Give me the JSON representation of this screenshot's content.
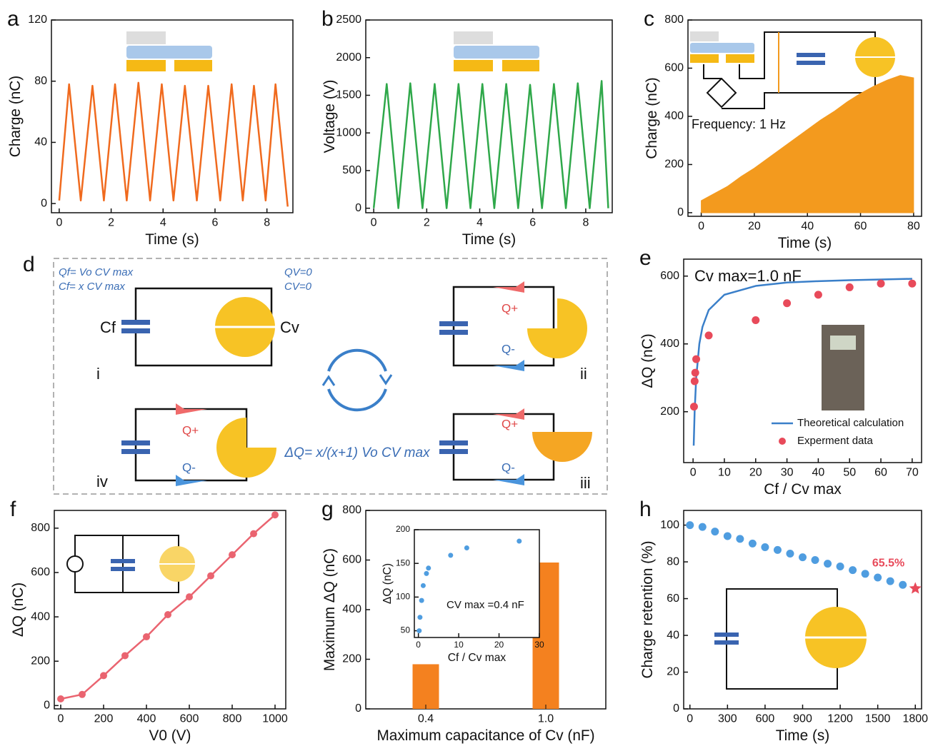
{
  "chart_data": [
    {
      "panel": "a",
      "type": "line",
      "xlabel": "Time (s)",
      "ylabel": "Charge (nC)",
      "x": [
        0,
        0.38,
        0.83,
        1.28,
        1.72,
        2.15,
        2.6,
        3.05,
        3.5,
        3.95,
        4.4,
        4.84,
        5.3,
        5.74,
        6.2,
        6.64,
        7.07,
        7.5,
        7.95,
        8.33,
        8.8
      ],
      "series": [
        {
          "color": "#f06a1e",
          "values": [
            2,
            78,
            2,
            77,
            2,
            78,
            2,
            79,
            2,
            78,
            2,
            77,
            2,
            77,
            2,
            78,
            2,
            77,
            2,
            78,
            -2
          ]
        }
      ],
      "xlim": [
        -0.3,
        9
      ],
      "xticks": [
        0,
        2,
        4,
        6,
        8
      ],
      "ylim": [
        -6,
        120
      ],
      "yticks": [
        0,
        40,
        80,
        120
      ]
    },
    {
      "panel": "b",
      "type": "line",
      "xlabel": "Time (s)",
      "ylabel": "Voltage (V)",
      "x": [
        0,
        0.49,
        0.93,
        1.38,
        1.84,
        2.3,
        2.75,
        3.2,
        3.65,
        4.1,
        4.55,
        5.0,
        5.45,
        5.9,
        6.35,
        6.8,
        7.25,
        7.7,
        8.15,
        8.6,
        8.85
      ],
      "series": [
        {
          "color": "#2fa84a",
          "values": [
            0,
            1650,
            0,
            1660,
            0,
            1650,
            0,
            1650,
            0,
            1650,
            0,
            1650,
            0,
            1640,
            0,
            1650,
            0,
            1660,
            0,
            1690,
            0
          ]
        }
      ],
      "xlim": [
        -0.3,
        9
      ],
      "xticks": [
        0,
        2,
        4,
        6,
        8
      ],
      "ylim": [
        -60,
        2500
      ],
      "yticks": [
        0,
        500,
        1000,
        1500,
        2000,
        2500
      ]
    },
    {
      "panel": "c",
      "type": "area",
      "xlabel": "Time (s)",
      "ylabel": "Charge (nC)",
      "annotation": "Frequency: 1 Hz",
      "x": [
        0,
        5,
        10,
        15,
        20,
        25,
        30,
        35,
        40,
        45,
        50,
        55,
        60,
        65,
        70,
        75,
        80
      ],
      "series": [
        {
          "color": "#f39a1e",
          "values": [
            50,
            80,
            110,
            150,
            185,
            225,
            265,
            305,
            345,
            385,
            420,
            460,
            495,
            525,
            550,
            570,
            560
          ]
        }
      ],
      "xlim": [
        -5,
        83
      ],
      "xticks": [
        0,
        20,
        40,
        60,
        80
      ],
      "ylim": [
        -15,
        800
      ],
      "yticks": [
        0,
        200,
        400,
        600,
        800
      ]
    },
    {
      "panel": "e",
      "type": "scatter",
      "xlabel": "Cf / Cv max",
      "ylabel": "ΔQ (nC)",
      "annotation": "Cv max=1.0 nF",
      "series": [
        {
          "name": "Theoretical calculation",
          "type": "line",
          "color": "#3a7fc9",
          "x": [
            0.2,
            0.5,
            1,
            2,
            3,
            5,
            10,
            20,
            30,
            40,
            50,
            60,
            70
          ],
          "values": [
            100,
            200,
            300,
            400,
            450,
            500,
            545,
            571,
            581,
            585,
            588,
            590,
            592
          ]
        },
        {
          "name": "Experment data",
          "type": "scatter",
          "color": "#e84a5a",
          "x": [
            0.3,
            0.5,
            0.7,
            1,
            5,
            20,
            30,
            40,
            50,
            60,
            70
          ],
          "values": [
            215,
            290,
            315,
            355,
            425,
            470,
            520,
            545,
            567,
            578,
            578
          ]
        }
      ],
      "xlim": [
        -3,
        73
      ],
      "xticks": [
        0,
        10,
        20,
        30,
        40,
        50,
        60,
        70
      ],
      "ylim": [
        50,
        650
      ],
      "yticks": [
        200,
        400,
        600
      ]
    },
    {
      "panel": "f",
      "type": "line",
      "xlabel": "V0 (V)",
      "ylabel": "ΔQ (nC)",
      "x": [
        0,
        100,
        200,
        300,
        400,
        500,
        600,
        700,
        800,
        900,
        1000
      ],
      "series": [
        {
          "color": "#ea6470",
          "marker": true,
          "values": [
            30,
            50,
            135,
            225,
            310,
            410,
            490,
            585,
            680,
            775,
            860
          ]
        }
      ],
      "xlim": [
        -30,
        1050
      ],
      "xticks": [
        0,
        200,
        400,
        600,
        800,
        1000
      ],
      "ylim": [
        -15,
        880
      ],
      "yticks": [
        0,
        200,
        400,
        600,
        800
      ]
    },
    {
      "panel": "g",
      "type": "bar",
      "xlabel": "Maximum capacitance of Cv (nF)",
      "ylabel": "Maximum ΔQ (nC)",
      "categories": [
        "0.4",
        "1.0"
      ],
      "values": [
        180,
        590
      ],
      "color": "#f4811f",
      "ylim": [
        0,
        800
      ],
      "yticks": [
        0,
        200,
        400,
        600,
        800
      ],
      "inset": {
        "type": "scatter",
        "xlabel": "Cf / Cv max",
        "ylabel": "ΔQ (nC)",
        "annotation": "CV max =0.4 nF",
        "series": [
          {
            "color": "#4f9de0",
            "x": [
              0.2,
              0.4,
              0.8,
              1.2,
              2,
              2.5,
              8,
              12,
              25
            ],
            "values": [
              50,
              70,
              95,
              117,
              135,
              143,
              162,
              173,
              183
            ]
          }
        ],
        "xlim": [
          -1,
          30
        ],
        "xticks": [
          0,
          10,
          20,
          30
        ],
        "ylim": [
          40,
          200
        ],
        "yticks": [
          50,
          100,
          150,
          200
        ]
      }
    },
    {
      "panel": "h",
      "type": "scatter",
      "xlabel": "Time (s)",
      "ylabel": "Charge retention (%)",
      "series": [
        {
          "color": "#4f9de0",
          "x": [
            0,
            100,
            200,
            300,
            400,
            500,
            600,
            700,
            800,
            900,
            1000,
            1100,
            1200,
            1300,
            1400,
            1500,
            1600,
            1700
          ],
          "values": [
            100,
            99,
            96.5,
            94,
            92.5,
            90,
            88,
            86.5,
            84.5,
            82.5,
            81,
            79,
            77.5,
            75.5,
            73.5,
            71.5,
            69.5,
            67.5
          ]
        }
      ],
      "end_point": {
        "x": 1800,
        "value": 65.5,
        "label": "65.5%",
        "color": "#e84a5a"
      },
      "xlim": [
        -50,
        1850
      ],
      "xticks": [
        0,
        300,
        600,
        900,
        1200,
        1500,
        1800
      ],
      "ylim": [
        0,
        108
      ],
      "yticks": [
        0,
        20,
        40,
        60,
        80,
        100
      ]
    }
  ],
  "diagram": {
    "panel": "d",
    "qf_eq": "Qf= Vo CV max",
    "cf_eq": "Cf= x CV max",
    "qv_eq": "QV=0",
    "cv_eq": "CV=0",
    "cf_label": "Cf",
    "cv_label": "Cv",
    "states": [
      "i",
      "ii",
      "iii",
      "iv"
    ],
    "q_plus": "Q+",
    "q_minus": "Q-",
    "formula": "ΔQ= x/(x+1) Vo CV max"
  }
}
